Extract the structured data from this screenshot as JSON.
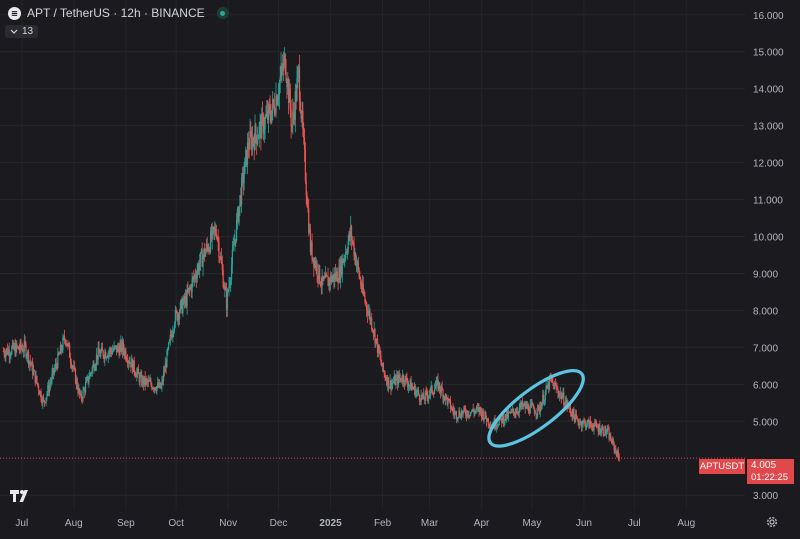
{
  "header": {
    "title": "APT / TetherUS · 12h · BINANCE"
  },
  "indicators": {
    "count": "13"
  },
  "price_axis": {
    "labels": [
      "16.000",
      "15.000",
      "14.000",
      "13.000",
      "12.000",
      "11.000",
      "10.000",
      "9.000",
      "8.000",
      "7.000",
      "6.000",
      "5.000",
      "3.000"
    ]
  },
  "time_axis": {
    "labels": [
      "Jul",
      "Aug",
      "Sep",
      "Oct",
      "Nov",
      "Dec",
      "2025",
      "Feb",
      "Mar",
      "Apr",
      "May",
      "Jun",
      "Jul",
      "Aug"
    ]
  },
  "current_price": {
    "symbol": "APTUSDT",
    "value": "4.005",
    "countdown": "01:22:25"
  },
  "colors": {
    "up": "#26a69a",
    "down": "#ef5350",
    "annotation": "#5bc4e0",
    "price_line": "#e0484b"
  },
  "icons": [
    "symbol-logo-icon",
    "status-dot-icon",
    "chevron-down-icon",
    "tradingview-logo-icon",
    "settings-gear-icon"
  ],
  "chart_data": {
    "type": "candlestick",
    "interval": "12h",
    "ylim": [
      2.6,
      16.4
    ],
    "x": [
      "2024-06-20",
      "2024-07-03",
      "2024-07-14",
      "2024-07-27",
      "2024-08-05",
      "2024-08-15",
      "2024-08-30",
      "2024-09-10",
      "2024-09-22",
      "2024-09-30",
      "2024-10-07",
      "2024-10-15",
      "2024-10-25",
      "2024-10-31",
      "2024-11-08",
      "2024-11-13",
      "2024-11-20",
      "2024-11-28",
      "2024-12-05",
      "2024-12-09",
      "2024-12-13",
      "2024-12-20",
      "2024-12-27",
      "2025-01-06",
      "2025-01-13",
      "2025-01-20",
      "2025-01-26",
      "2025-02-01",
      "2025-02-05",
      "2025-02-13",
      "2025-02-25",
      "2025-03-06",
      "2025-03-16",
      "2025-03-31",
      "2025-04-07",
      "2025-04-15",
      "2025-04-25",
      "2025-05-05",
      "2025-05-12",
      "2025-05-20",
      "2025-05-28",
      "2025-06-06",
      "2025-06-15",
      "2025-06-22"
    ],
    "close": [
      6.9,
      7.0,
      5.5,
      7.3,
      5.6,
      6.8,
      7.0,
      6.1,
      5.9,
      7.8,
      8.3,
      9.3,
      10.2,
      8.2,
      11.0,
      12.5,
      12.9,
      13.5,
      14.8,
      13.0,
      14.4,
      9.7,
      8.7,
      9.0,
      10.1,
      8.5,
      7.6,
      6.4,
      6.0,
      6.2,
      5.6,
      6.0,
      5.2,
      5.3,
      4.9,
      5.1,
      5.4,
      5.3,
      6.1,
      5.6,
      5.0,
      4.9,
      4.7,
      4.005
    ],
    "annotation": {
      "shape": "ellipse",
      "x_range": [
        "2025-04-01",
        "2025-06-05"
      ],
      "y_range": [
        4.2,
        6.5
      ]
    }
  }
}
